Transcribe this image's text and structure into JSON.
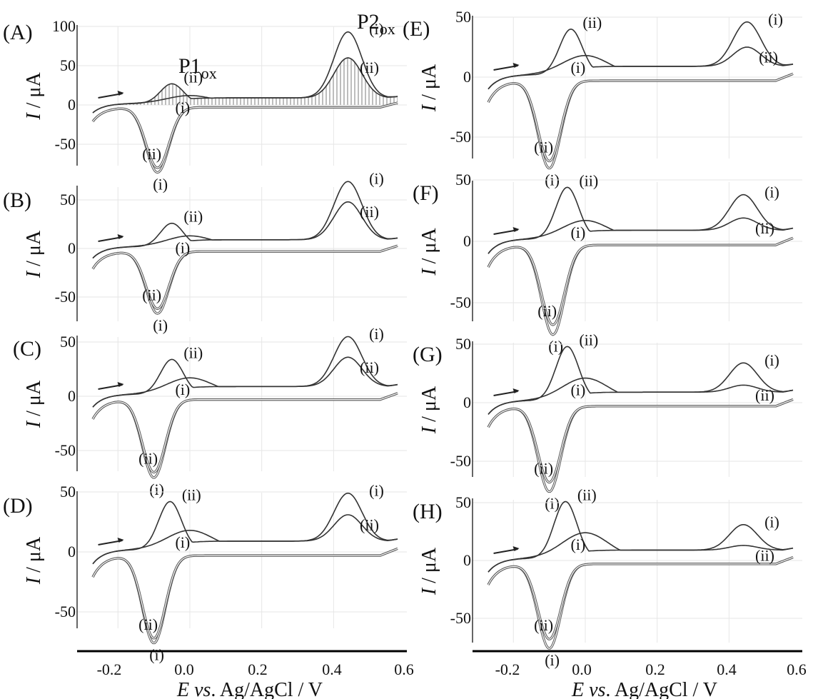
{
  "figure": {
    "xlabel_parts": [
      "E",
      " vs",
      ". Ag/AgCl / V"
    ],
    "ylabel_parts": [
      "I",
      " / μA"
    ],
    "x_ticks": [
      "-0.2",
      "0.0",
      "0.2",
      "0.4",
      "0.6"
    ],
    "peak_labels": {
      "p1": {
        "main": "P1",
        "sub": "ox"
      },
      "p2": {
        "main": "P2",
        "sub": "ox"
      }
    },
    "curve_marks": [
      "(i)",
      "(ii)"
    ]
  },
  "colors": {
    "curve_i": "#333333",
    "curve_ii": "#333333",
    "reverse_outline": "#555555",
    "hatch": "#bdbdbd",
    "grid": "#e6e6e6",
    "axis": "#000000"
  },
  "chart_data": [
    {
      "type": "line",
      "panel": "(A)",
      "xlim": [
        -0.27,
        0.58
      ],
      "ylim": [
        -60,
        100
      ],
      "y_ticks": [
        "100",
        "50",
        "0",
        "-50"
      ],
      "grid": true,
      "p1": {
        "i": 12,
        "ii": 27,
        "ii_x": -0.05
      },
      "p2": {
        "i": 92,
        "ii": 59,
        "i_x": 0.44,
        "ii_x": 0.44
      },
      "cathodic": {
        "i": -86,
        "ii": -80,
        "x": -0.09
      },
      "series": [
        {
          "name": "(i)",
          "x": [
            -0.27,
            -0.2,
            -0.1,
            -0.05,
            0.0,
            0.1,
            0.2,
            0.3,
            0.38,
            0.44,
            0.5,
            0.58
          ],
          "y": [
            -10,
            -2,
            5,
            10,
            12,
            10,
            9,
            14,
            45,
            92,
            45,
            14
          ]
        },
        {
          "name": "(ii)",
          "x": [
            -0.27,
            -0.2,
            -0.1,
            -0.05,
            0.0,
            0.1,
            0.2,
            0.3,
            0.38,
            0.44,
            0.5,
            0.58
          ],
          "y": [
            -10,
            -2,
            10,
            27,
            20,
            9,
            8,
            12,
            35,
            59,
            32,
            12
          ]
        }
      ],
      "hatched": true
    },
    {
      "type": "line",
      "panel": "(B)",
      "xlim": [
        -0.27,
        0.58
      ],
      "ylim": [
        -60,
        60
      ],
      "y_ticks": [
        "50",
        "0",
        "-50"
      ],
      "grid": true,
      "p1": {
        "i": 13,
        "ii": 26,
        "ii_x": -0.05
      },
      "p2": {
        "i": 68,
        "ii": 47,
        "i_x": 0.44,
        "ii_x": 0.44
      },
      "cathodic": {
        "i": -67,
        "ii": -62,
        "x": -0.09
      },
      "hatched": false
    },
    {
      "type": "line",
      "panel": "(C)",
      "xlim": [
        -0.27,
        0.58
      ],
      "ylim": [
        -60,
        60
      ],
      "y_ticks": [
        "50",
        "0",
        "-50"
      ],
      "grid": true,
      "p1": {
        "i": 17,
        "ii": 34,
        "ii_x": -0.05
      },
      "p2": {
        "i": 54,
        "ii": 35,
        "i_x": 0.44,
        "ii_x": 0.44
      },
      "cathodic": {
        "i": -75,
        "ii": -70,
        "x": -0.1
      },
      "hatched": false
    },
    {
      "type": "line",
      "panel": "(D)",
      "xlim": [
        -0.27,
        0.58
      ],
      "ylim": [
        -60,
        60
      ],
      "y_ticks": [
        "50",
        "0",
        "-50"
      ],
      "grid": true,
      "p1": {
        "i": 18,
        "ii": 42,
        "ii_x": -0.055
      },
      "p2": {
        "i": 48,
        "ii": 30,
        "i_x": 0.44,
        "ii_x": 0.44
      },
      "cathodic": {
        "i": -76,
        "ii": -72,
        "x": -0.1
      },
      "hatched": false
    },
    {
      "type": "line",
      "panel": "(E)",
      "xlim": [
        -0.27,
        0.58
      ],
      "ylim": [
        -60,
        50
      ],
      "y_ticks": [
        "50",
        "0",
        "-50"
      ],
      "grid": true,
      "p1": {
        "i": 18,
        "ii": 40,
        "ii_x": -0.04
      },
      "p2": {
        "i": 45,
        "ii": 24,
        "i_x": 0.45,
        "ii_x": 0.45
      },
      "cathodic": {
        "i": -76,
        "ii": -70,
        "x": -0.1
      },
      "hatched": false
    },
    {
      "type": "line",
      "panel": "(F)",
      "xlim": [
        -0.27,
        0.58
      ],
      "ylim": [
        -60,
        50
      ],
      "y_ticks": [
        "50",
        "0",
        "-50"
      ],
      "grid": true,
      "p1": {
        "i": 17,
        "ii": 44,
        "ii_x": -0.05
      },
      "p2": {
        "i": 37,
        "ii": 18,
        "i_x": 0.44,
        "ii_x": 0.44
      },
      "cathodic": {
        "i": -76,
        "ii": -68,
        "x": -0.09
      },
      "hatched": false
    },
    {
      "type": "line",
      "panel": "(G)",
      "xlim": [
        -0.27,
        0.58
      ],
      "ylim": [
        -60,
        50
      ],
      "y_ticks": [
        "50",
        "0",
        "-50"
      ],
      "grid": true,
      "p1": {
        "i": 21,
        "ii": 48,
        "ii_x": -0.05
      },
      "p2": {
        "i": 33,
        "ii": 14,
        "i_x": 0.44,
        "ii_x": 0.44
      },
      "cathodic": {
        "i": -76,
        "ii": -68,
        "x": -0.1
      },
      "hatched": false
    },
    {
      "type": "line",
      "panel": "(H)",
      "xlim": [
        -0.27,
        0.58
      ],
      "ylim": [
        -60,
        50
      ],
      "y_ticks": [
        "50",
        "0",
        "-50"
      ],
      "grid": true,
      "p1": {
        "i": 24,
        "ii": 51,
        "ii_x": -0.055
      },
      "p2": {
        "i": 30,
        "ii": 12,
        "i_x": 0.44,
        "ii_x": 0.44
      },
      "cathodic": {
        "i": -76,
        "ii": -68,
        "x": -0.1
      },
      "hatched": false
    }
  ]
}
